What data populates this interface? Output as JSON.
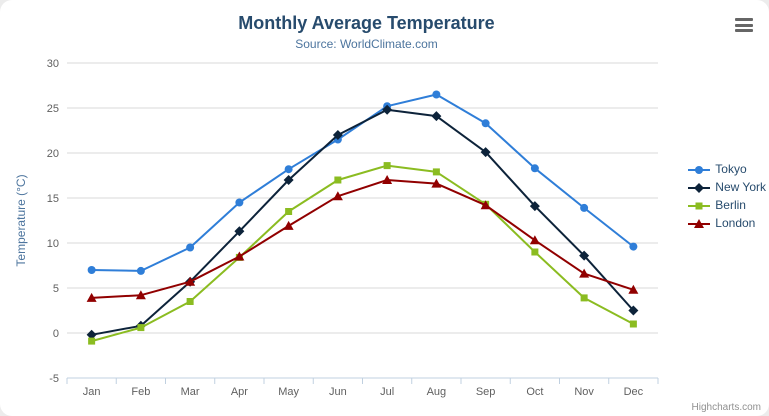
{
  "header": {
    "title": "Monthly Average Temperature",
    "subtitle": "Source: WorldClimate.com"
  },
  "export_menu": {
    "icon": "hamburger-icon"
  },
  "credits": {
    "label": "Highcharts.com"
  },
  "colors": {
    "title": "#274b6d",
    "subtitle": "#4d759e",
    "axis_title": "#4d759e",
    "tick_label": "#606060",
    "gridline": "#d8d8d8",
    "axis_line": "#c0d0e0",
    "legend_text": "#274b6d"
  },
  "chart_data": {
    "type": "line",
    "title": "Monthly Average Temperature",
    "subtitle": "Source: WorldClimate.com",
    "categories": [
      "Jan",
      "Feb",
      "Mar",
      "Apr",
      "May",
      "Jun",
      "Jul",
      "Aug",
      "Sep",
      "Oct",
      "Nov",
      "Dec"
    ],
    "xlabel": "",
    "ylabel": "Temperature (°C)",
    "ylim": [
      -5,
      30
    ],
    "yticks": [
      -5,
      0,
      5,
      10,
      15,
      20,
      25,
      30
    ],
    "grid": true,
    "legend_position": "right",
    "series": [
      {
        "name": "Tokyo",
        "color": "#2f7ed8",
        "marker": "circle",
        "values": [
          7.0,
          6.9,
          9.5,
          14.5,
          18.2,
          21.5,
          25.2,
          26.5,
          23.3,
          18.3,
          13.9,
          9.6
        ]
      },
      {
        "name": "New York",
        "color": "#0d233a",
        "marker": "diamond",
        "values": [
          -0.2,
          0.8,
          5.7,
          11.3,
          17.0,
          22.0,
          24.8,
          24.1,
          20.1,
          14.1,
          8.6,
          2.5
        ]
      },
      {
        "name": "Berlin",
        "color": "#8bbc21",
        "marker": "square",
        "values": [
          -0.9,
          0.6,
          3.5,
          8.4,
          13.5,
          17.0,
          18.6,
          17.9,
          14.3,
          9.0,
          3.9,
          1.0
        ]
      },
      {
        "name": "London",
        "color": "#910000",
        "marker": "triangle",
        "values": [
          3.9,
          4.2,
          5.7,
          8.5,
          11.9,
          15.2,
          17.0,
          16.6,
          14.2,
          10.3,
          6.6,
          4.8
        ]
      }
    ]
  }
}
